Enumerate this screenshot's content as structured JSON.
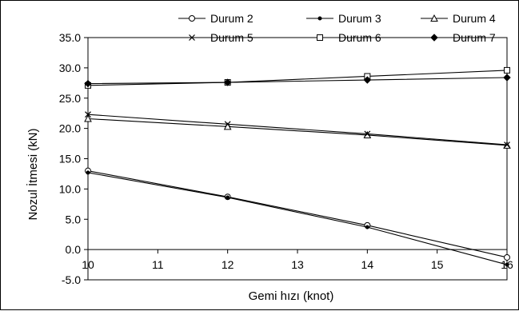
{
  "chart_data": {
    "type": "line",
    "title": "",
    "xlabel": "Gemi hızı  (knot)",
    "ylabel": "Nozul İtmesi  (kN)",
    "xlim": [
      10,
      16
    ],
    "ylim": [
      -5,
      35
    ],
    "x_ticks": [
      "10",
      "11",
      "12",
      "13",
      "14",
      "15",
      "16"
    ],
    "y_ticks": [
      "35.0",
      "30.0",
      "25.0",
      "20.0",
      "15.0",
      "10.0",
      "5.0",
      "0.0",
      "-5.0"
    ],
    "grid": false,
    "legend_position": "top-right",
    "x": [
      10,
      12,
      14,
      16
    ],
    "series": [
      {
        "name": "Durum 2",
        "marker": "circle",
        "values": [
          13.0,
          8.7,
          4.0,
          -1.3
        ]
      },
      {
        "name": "Durum 3",
        "marker": "dot",
        "values": [
          12.7,
          8.6,
          3.7,
          -2.5
        ]
      },
      {
        "name": "Durum 4",
        "marker": "triangle",
        "values": [
          21.6,
          20.3,
          18.9,
          17.2
        ]
      },
      {
        "name": "Durum 5",
        "marker": "x",
        "values": [
          22.3,
          20.7,
          19.1,
          17.3
        ]
      },
      {
        "name": "Durum 6",
        "marker": "square",
        "values": [
          27.1,
          27.6,
          28.6,
          29.6
        ]
      },
      {
        "name": "Durum 7",
        "marker": "diamond",
        "values": [
          27.4,
          27.6,
          28.0,
          28.4
        ]
      }
    ]
  }
}
